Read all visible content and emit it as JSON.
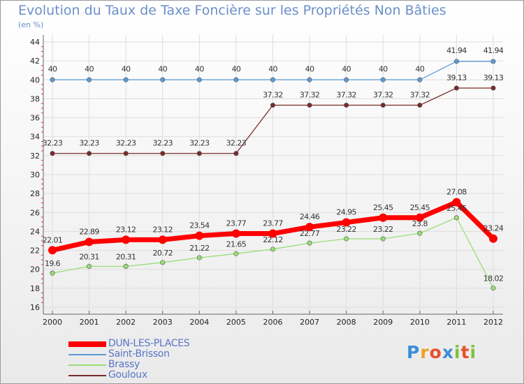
{
  "title": "Evolution du Taux de Taxe Foncière sur les Propriétés Non Bâties",
  "unit_label": "(en %)",
  "logo": {
    "letters": [
      "P",
      "r",
      "o",
      "x",
      "i",
      "t",
      "i"
    ],
    "colors": [
      "#3a8fd8",
      "#f0a020",
      "#e8502a",
      "#3a8fd8",
      "#80c040",
      "#e8502a",
      "#80c040"
    ]
  },
  "chart_data": {
    "type": "line",
    "title": "Evolution du Taux de Taxe Foncière sur les Propriétés Non Bâties",
    "ylabel": "(en %)",
    "xlabel": "",
    "x": [
      "2000",
      "2001",
      "2002",
      "2003",
      "2004",
      "2005",
      "2006",
      "2007",
      "2008",
      "2009",
      "2010",
      "2011",
      "2012"
    ],
    "ylim": [
      16,
      44
    ],
    "yticks": [
      16,
      18,
      20,
      22,
      24,
      26,
      28,
      30,
      32,
      34,
      36,
      38,
      40,
      42,
      44
    ],
    "grid": true,
    "legend_position": "bottom-left",
    "series": [
      {
        "name": "DUN-LES-PLACES",
        "color": "#ff0000",
        "values": [
          22.01,
          22.89,
          23.12,
          23.12,
          23.54,
          23.77,
          23.77,
          24.46,
          24.95,
          25.45,
          25.45,
          27.08,
          23.24
        ],
        "labels": [
          "22.01",
          "22.89",
          "23.12",
          "23.12",
          "23.54",
          "23.77",
          "23.77",
          "24.46",
          "24.95",
          "25.45",
          "25.45",
          "27.08",
          "23.24"
        ]
      },
      {
        "name": "Saint-Brisson",
        "color": "#5b9bd5",
        "values": [
          40,
          40,
          40,
          40,
          40,
          40,
          40,
          40,
          40,
          40,
          40,
          41.94,
          41.94
        ],
        "labels": [
          "40",
          "40",
          "40",
          "40",
          "40",
          "40",
          "40",
          "40",
          "40",
          "40",
          "40",
          "41.94",
          "41.94"
        ]
      },
      {
        "name": "Brassy",
        "color": "#99dd77",
        "values": [
          19.6,
          20.31,
          20.31,
          20.72,
          21.22,
          21.65,
          22.12,
          22.77,
          23.22,
          23.22,
          23.8,
          25.45,
          18.02
        ],
        "labels": [
          "19.6",
          "20.31",
          "20.31",
          "20.72",
          "21.22",
          "21.65",
          "22.12",
          "22.77",
          "23.22",
          "23.22",
          "23.8",
          "25.45",
          "18.02"
        ]
      },
      {
        "name": "Gouloux",
        "color": "#7a2a2a",
        "values": [
          32.23,
          32.23,
          32.23,
          32.23,
          32.23,
          32.23,
          37.32,
          37.32,
          37.32,
          37.32,
          37.32,
          39.13,
          39.13
        ],
        "labels": [
          "32.23",
          "32.23",
          "32.23",
          "32.23",
          "32.23",
          "32.23",
          "37.32",
          "37.32",
          "37.32",
          "37.32",
          "37.32",
          "39.13",
          "39.13"
        ]
      }
    ]
  }
}
